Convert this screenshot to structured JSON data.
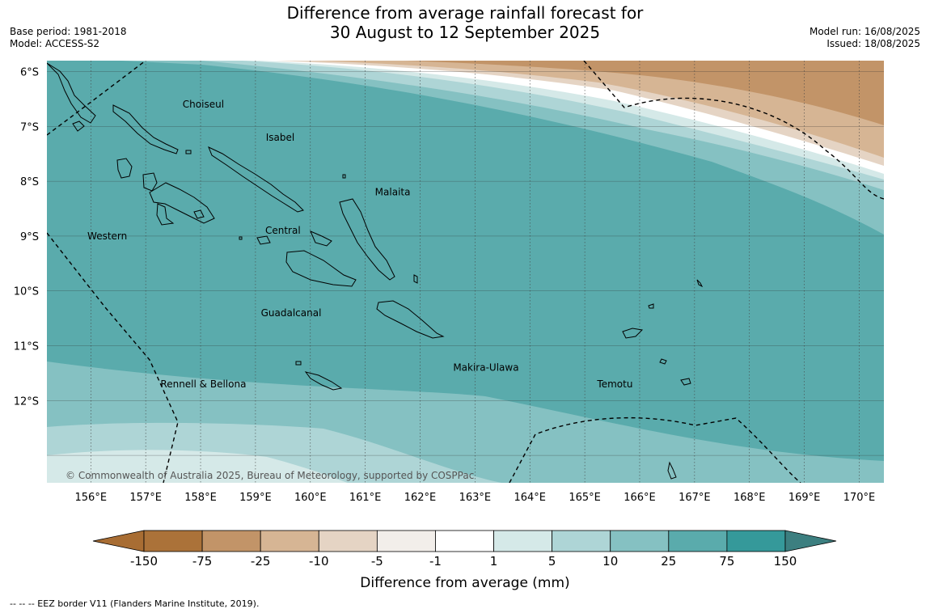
{
  "title_line1": "Difference from average rainfall forecast for",
  "title_line2": "30 August to 12 September 2025",
  "base_period": "Base period: 1981-2018",
  "model": "Model: ACCESS-S2",
  "model_run": "Model run: 16/08/2025",
  "issued": "Issued: 18/08/2025",
  "copyright": "© Commonwealth of Australia 2025, Bureau of Meteorology, supported by COSPPac",
  "footnote": "--  --  -- EEZ border V11 (Flanders Marine Institute, 2019).",
  "lat_labels": [
    "6°S",
    "7°S",
    "8°S",
    "9°S",
    "10°S",
    "11°S",
    "12°S"
  ],
  "lon_labels": [
    "156°E",
    "157°E",
    "158°E",
    "159°E",
    "160°E",
    "161°E",
    "162°E",
    "163°E",
    "164°E",
    "165°E",
    "166°E",
    "167°E",
    "168°E",
    "169°E",
    "170°E"
  ],
  "regions": [
    {
      "name": "Choiseul",
      "lon": 158.05,
      "lat": -6.6
    },
    {
      "name": "Isabel",
      "lon": 159.45,
      "lat": -7.2
    },
    {
      "name": "Malaita",
      "lon": 161.5,
      "lat": -8.2
    },
    {
      "name": "Western",
      "lon": 156.3,
      "lat": -9.0
    },
    {
      "name": "Central",
      "lon": 159.5,
      "lat": -8.9
    },
    {
      "name": "Guadalcanal",
      "lon": 159.65,
      "lat": -10.4
    },
    {
      "name": "Makira-Ulawa",
      "lon": 163.2,
      "lat": -11.4
    },
    {
      "name": "Rennell & Bellona",
      "lon": 158.05,
      "lat": -11.7
    },
    {
      "name": "Temotu",
      "lon": 165.55,
      "lat": -11.7
    }
  ],
  "legend": {
    "title": "Difference from average (mm)",
    "labels": [
      "-150",
      "-75",
      "-25",
      "-10",
      "-5",
      "-1",
      "1",
      "5",
      "10",
      "25",
      "75",
      "150"
    ],
    "colors": [
      "#ab7239",
      "#c29468",
      "#d6b594",
      "#e5d4c4",
      "#f2eeea",
      "#ffffff",
      "#d5e9e8",
      "#aed5d6",
      "#85c1c2",
      "#5aabac",
      "#35999a"
    ],
    "extend_low_color": "#a86d33",
    "extend_high_color": "#3c7f80"
  },
  "map_colors": {
    "brown_dark": "#c29468",
    "brown_mid": "#d6b594",
    "brown_light": "#e5d4c4",
    "white": "#ffffff",
    "teal_very_light": "#d5e9e8",
    "teal_light": "#aed5d6",
    "teal_mid": "#85c1c2",
    "teal": "#5aabac"
  }
}
